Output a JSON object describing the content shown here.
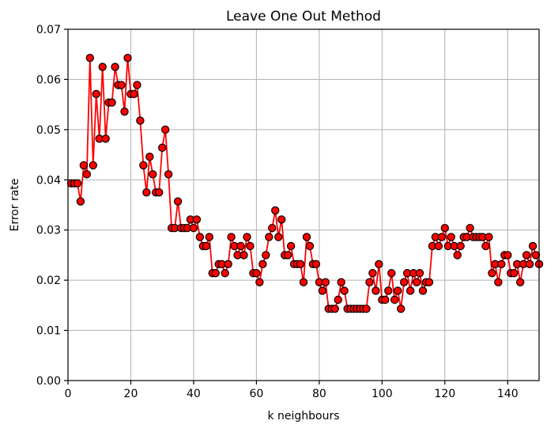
{
  "chart_data": {
    "type": "line",
    "title": "Leave One Out Method",
    "xlabel": "k neighbours",
    "ylabel": "Error rate",
    "xlim": [
      0,
      150
    ],
    "ylim": [
      0,
      0.07
    ],
    "xticks": [
      0,
      20,
      40,
      60,
      80,
      100,
      120,
      140
    ],
    "xtick_labels": [
      "0",
      "20",
      "40",
      "60",
      "80",
      "100",
      "120",
      "140"
    ],
    "yticks": [
      0,
      0.01,
      0.02,
      0.03,
      0.04,
      0.05,
      0.06,
      0.07
    ],
    "ytick_labels": [
      "0.00",
      "0.01",
      "0.02",
      "0.03",
      "0.04",
      "0.05",
      "0.06",
      "0.07"
    ],
    "grid": true,
    "line_color": "#ff0000",
    "marker_face_color": "#ff0000",
    "marker_edge_color": "#000000",
    "series": [
      {
        "x": [
          1,
          2,
          3,
          4,
          5,
          6,
          7,
          8,
          9,
          10,
          11,
          12,
          13,
          14,
          15,
          16,
          17,
          18,
          19,
          20,
          21,
          22,
          23,
          24,
          25,
          26,
          27,
          28,
          29,
          30,
          31,
          32,
          33,
          34,
          35,
          36,
          37,
          38,
          39,
          40,
          41,
          42,
          43,
          44,
          45,
          46,
          47,
          48,
          49,
          50,
          51,
          52,
          53,
          54,
          55,
          56,
          57,
          58,
          59,
          60,
          61,
          62,
          63,
          64,
          65,
          66,
          67,
          68,
          69,
          70,
          71,
          72,
          73,
          74,
          75,
          76,
          77,
          78,
          79,
          80,
          81,
          82,
          83,
          84,
          85,
          86,
          87,
          88,
          89,
          90,
          91,
          92,
          93,
          94,
          95,
          96,
          97,
          98,
          99,
          100,
          101,
          102,
          103,
          104,
          105,
          106,
          107,
          108,
          109,
          110,
          111,
          112,
          113,
          114,
          115,
          116,
          117,
          118,
          119,
          120,
          121,
          122,
          123,
          124,
          125,
          126,
          127,
          128,
          129,
          130,
          131,
          132,
          133,
          134,
          135,
          136,
          137,
          138,
          139,
          140,
          141,
          142,
          143,
          144,
          145,
          146,
          147,
          148,
          149,
          150
        ],
        "values": [
          0.0393,
          0.0393,
          0.0393,
          0.0357,
          0.0429,
          0.0411,
          0.0643,
          0.0429,
          0.0571,
          0.0482,
          0.0625,
          0.0482,
          0.0554,
          0.0554,
          0.0625,
          0.0589,
          0.0589,
          0.0536,
          0.0643,
          0.0571,
          0.0571,
          0.0589,
          0.0518,
          0.0429,
          0.0375,
          0.0446,
          0.0411,
          0.0375,
          0.0375,
          0.0464,
          0.05,
          0.0411,
          0.0304,
          0.0304,
          0.0357,
          0.0304,
          0.0304,
          0.0304,
          0.0321,
          0.0304,
          0.0321,
          0.0286,
          0.0268,
          0.0268,
          0.0286,
          0.0214,
          0.0214,
          0.0232,
          0.0232,
          0.0214,
          0.0232,
          0.0286,
          0.0268,
          0.025,
          0.0268,
          0.025,
          0.0286,
          0.0268,
          0.0214,
          0.0214,
          0.0196,
          0.0232,
          0.025,
          0.0286,
          0.0304,
          0.0339,
          0.0286,
          0.0321,
          0.025,
          0.025,
          0.0268,
          0.0232,
          0.0232,
          0.0232,
          0.0196,
          0.0286,
          0.0268,
          0.0232,
          0.0232,
          0.0196,
          0.0179,
          0.0196,
          0.0143,
          0.0143,
          0.0143,
          0.0161,
          0.0196,
          0.0179,
          0.0143,
          0.0143,
          0.0143,
          0.0143,
          0.0143,
          0.0143,
          0.0143,
          0.0196,
          0.0214,
          0.0179,
          0.0232,
          0.0161,
          0.0161,
          0.0179,
          0.0214,
          0.0161,
          0.0179,
          0.0143,
          0.0196,
          0.0214,
          0.0179,
          0.0214,
          0.0196,
          0.0214,
          0.0179,
          0.0196,
          0.0196,
          0.0268,
          0.0286,
          0.0268,
          0.0286,
          0.0304,
          0.0268,
          0.0286,
          0.0268,
          0.025,
          0.0268,
          0.0286,
          0.0286,
          0.0304,
          0.0286,
          0.0286,
          0.0286,
          0.0286,
          0.0268,
          0.0286,
          0.0214,
          0.0232,
          0.0196,
          0.0232,
          0.025,
          0.025,
          0.0214,
          0.0214,
          0.0232,
          0.0196,
          0.0232,
          0.025,
          0.0232,
          0.0268,
          0.025,
          0.0232
        ]
      }
    ]
  }
}
